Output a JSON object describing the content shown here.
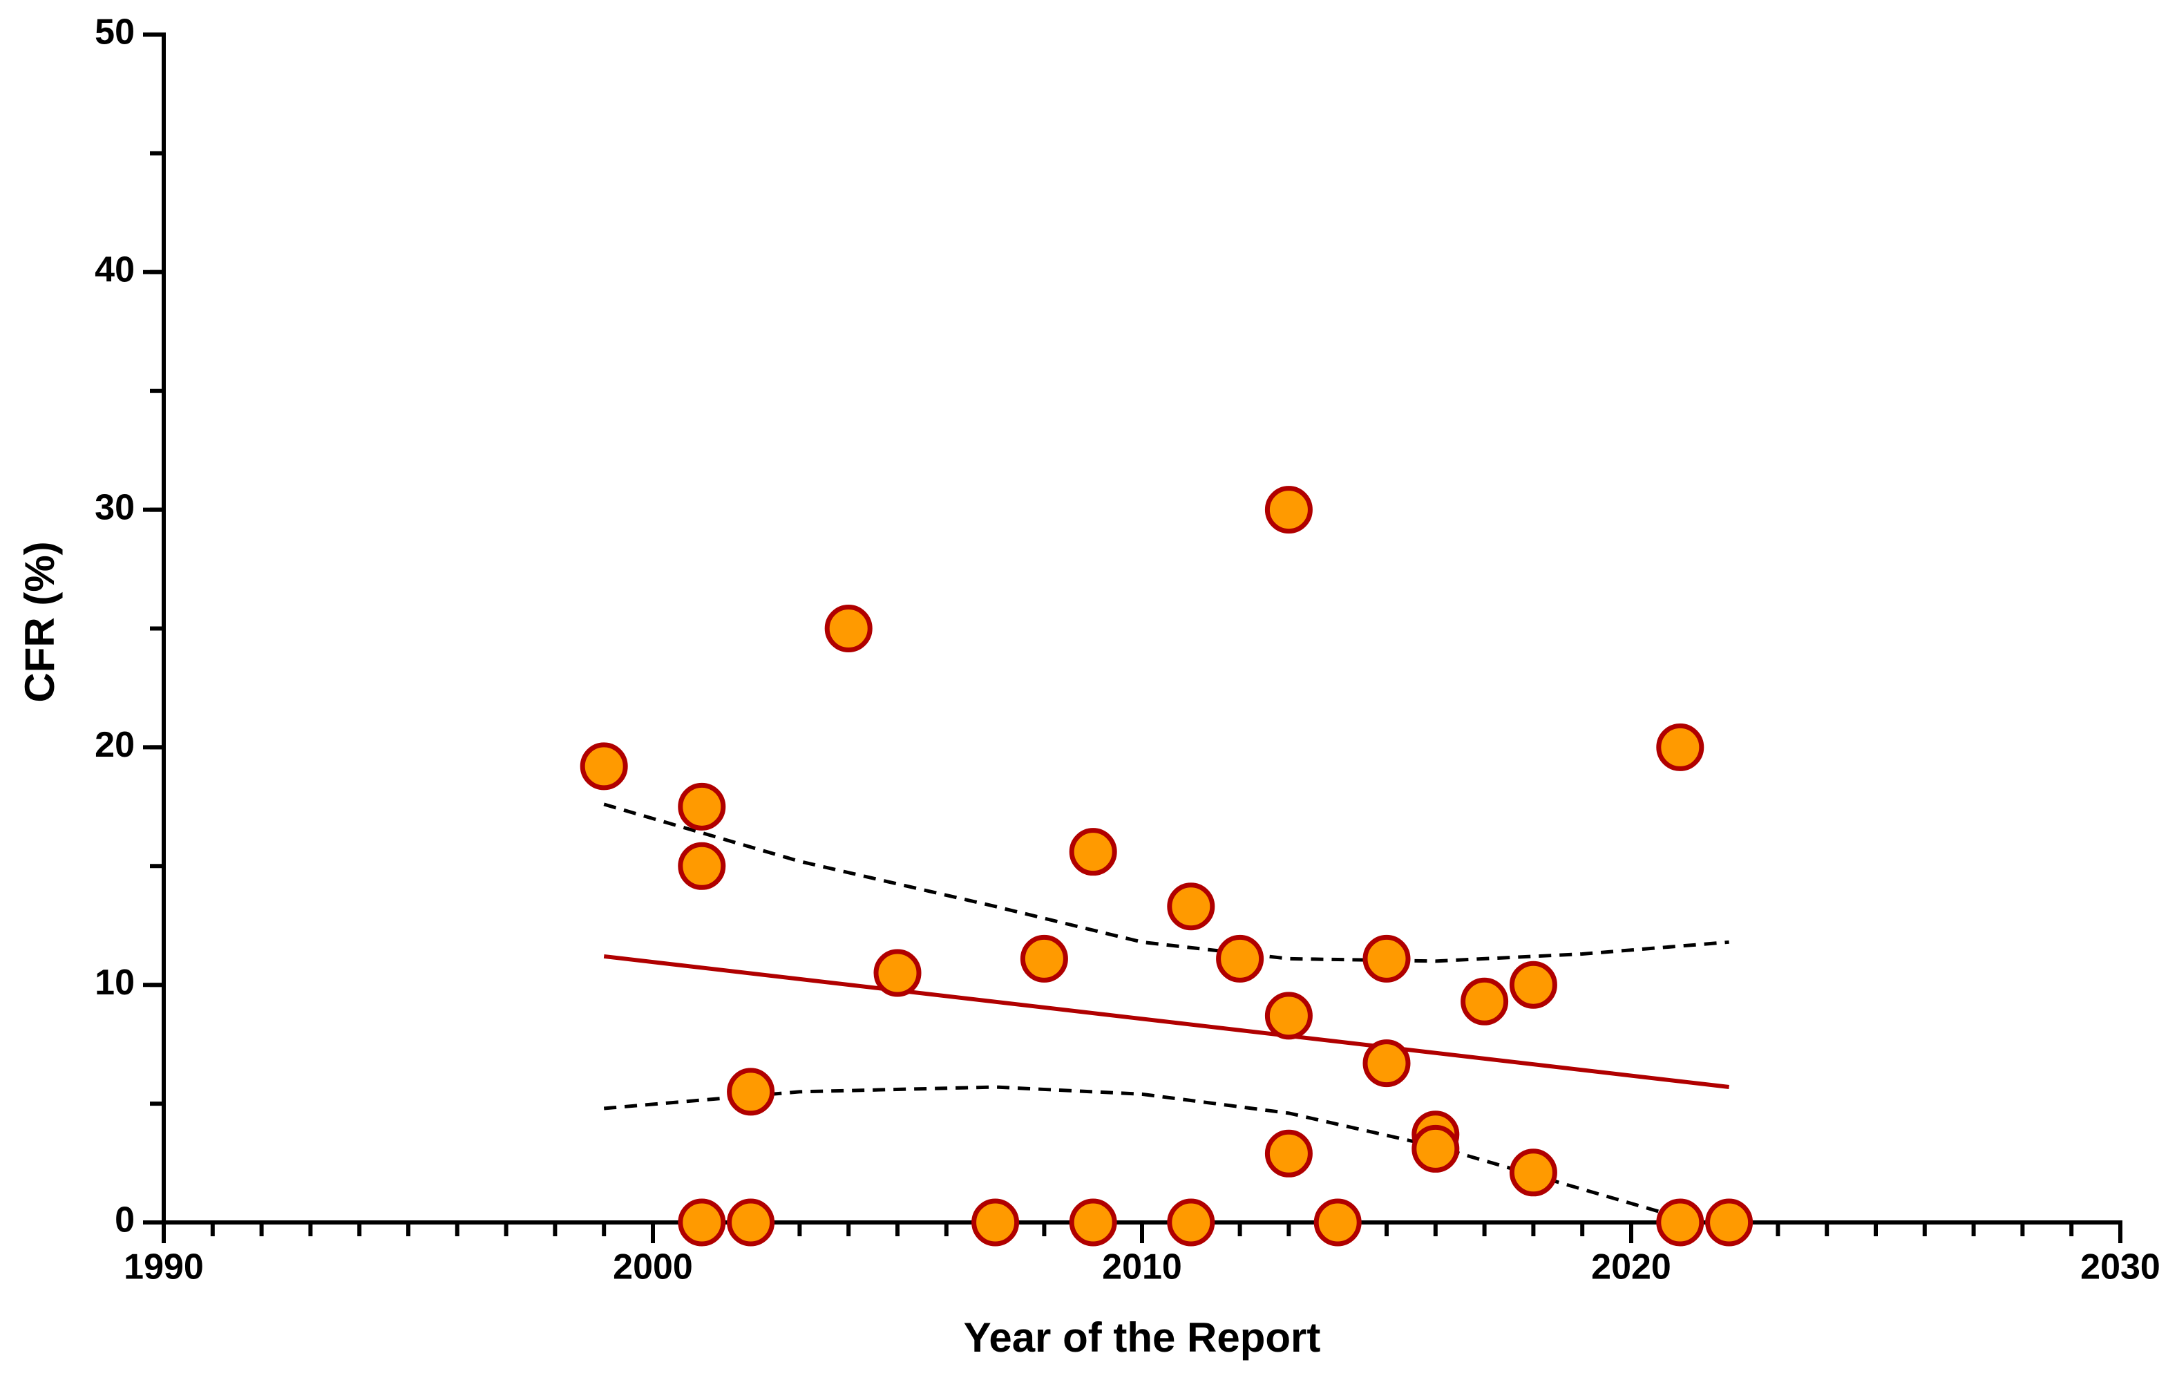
{
  "chart_data": {
    "type": "scatter",
    "xlabel": "Year of the Report",
    "ylabel": "CFR (%)",
    "xlim": [
      1990,
      2030
    ],
    "xticks": [
      1990,
      2000,
      2010,
      2020,
      2030
    ],
    "xminor_step": 1,
    "ylim": [
      0,
      50
    ],
    "yticks": [
      0,
      10,
      20,
      30,
      40,
      50
    ],
    "yminor_step": 5,
    "series": [
      {
        "type": "scatter",
        "color": "#ff9a00",
        "edgecolor": "#b00000",
        "x": [
          1999,
          2001,
          2001,
          2001,
          2002,
          2002,
          2004,
          2005,
          2007,
          2008,
          2009,
          2009,
          2011,
          2011,
          2012,
          2013,
          2013,
          2013,
          2014,
          2015,
          2015,
          2016,
          2016,
          2017,
          2018,
          2018,
          2021,
          2021,
          2022
        ],
        "values": [
          19.2,
          17.5,
          15,
          0,
          5.5,
          0,
          25,
          10.5,
          0,
          11.1,
          15.6,
          0,
          13.3,
          0,
          11.1,
          30,
          8.7,
          2.9,
          0,
          11.1,
          6.7,
          3.7,
          3.1,
          9.3,
          10,
          2.1,
          20,
          0,
          0
        ]
      },
      {
        "type": "line",
        "color": "#b00000",
        "x": [
          1999,
          2022
        ],
        "values": [
          11.2,
          5.7
        ]
      },
      {
        "type": "dashed",
        "color": "#000000",
        "x": [
          1999,
          2003,
          2007,
          2010,
          2013,
          2016,
          2019,
          2022
        ],
        "values": [
          17.6,
          15.2,
          13.3,
          11.8,
          11.1,
          11.0,
          11.3,
          11.8
        ]
      },
      {
        "type": "dashed",
        "color": "#000000",
        "x": [
          1999,
          2003,
          2007,
          2010,
          2013,
          2016,
          2019,
          2021
        ],
        "values": [
          4.8,
          5.5,
          5.7,
          5.4,
          4.6,
          3.2,
          1.4,
          0.2
        ]
      }
    ]
  }
}
